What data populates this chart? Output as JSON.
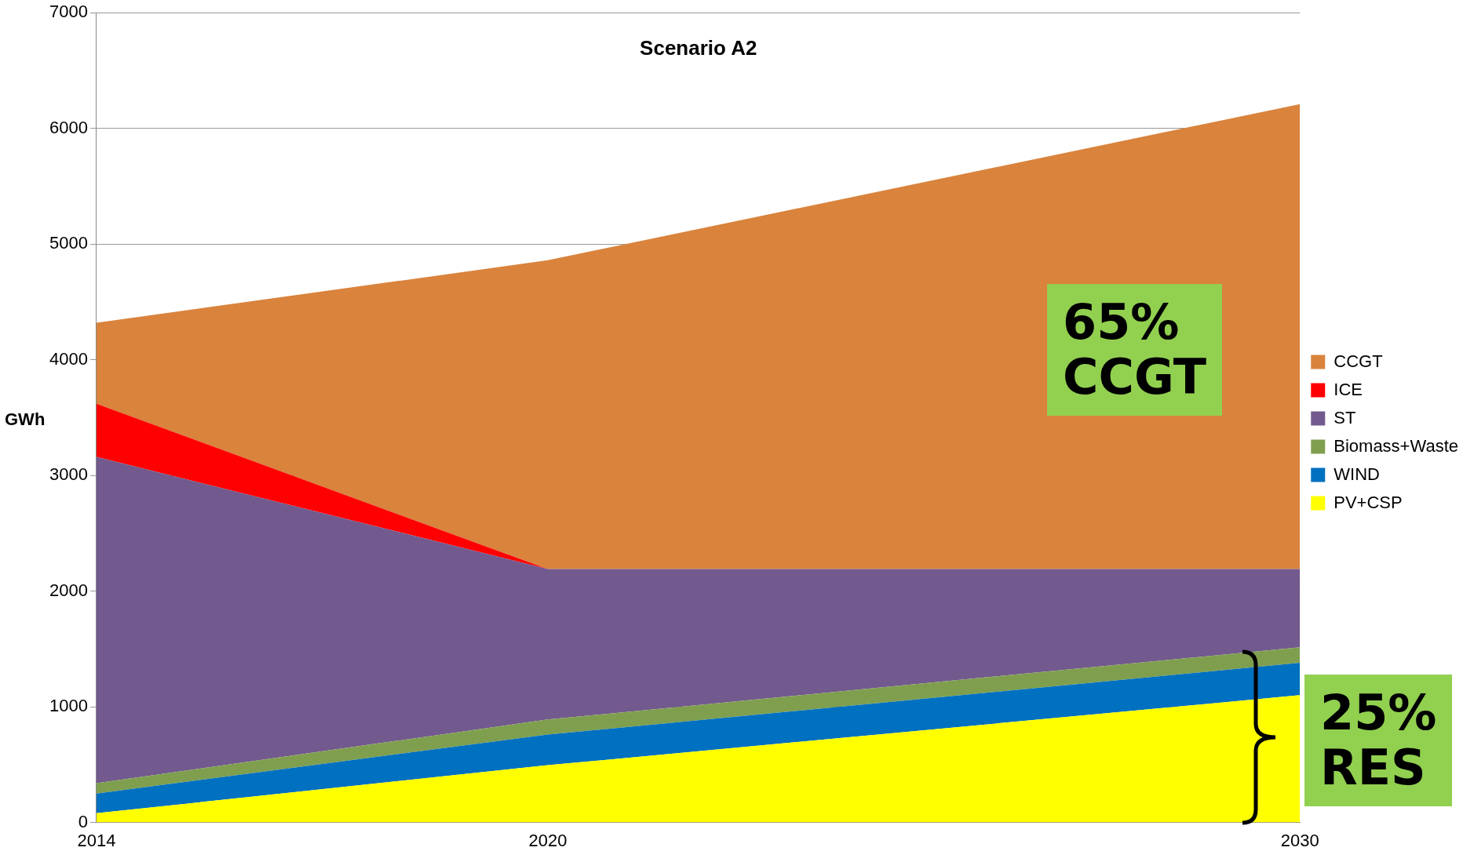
{
  "chart_data": {
    "type": "area",
    "title": "Scenario A2",
    "ylabel": "GWh",
    "stacked": true,
    "x": [
      2014,
      2020,
      2030
    ],
    "xlim": [
      2014,
      2030
    ],
    "xticks": [
      2014,
      2020,
      2030
    ],
    "ylim": [
      0,
      7000
    ],
    "yticks": [
      0,
      1000,
      2000,
      3000,
      4000,
      5000,
      6000,
      7000
    ],
    "grid": "y",
    "legend": "right",
    "series": [
      {
        "name": "PV+CSP",
        "color": "#ffff00",
        "values": [
          80,
          495,
          1100
        ]
      },
      {
        "name": "WIND",
        "color": "#0070c0",
        "values": [
          170,
          265,
          280
        ]
      },
      {
        "name": "Biomass+Waste",
        "color": "#7f9f4f",
        "values": [
          90,
          130,
          135
        ]
      },
      {
        "name": "ST",
        "color": "#72598e",
        "values": [
          2820,
          1300,
          675
        ]
      },
      {
        "name": "ICE",
        "color": "#ff0000",
        "values": [
          460,
          0,
          0
        ]
      },
      {
        "name": "CCGT",
        "color": "#d9833d",
        "values": [
          700,
          2670,
          4020
        ]
      }
    ],
    "annotations": [
      "65%\nCCGT",
      "25%\nRES"
    ]
  }
}
